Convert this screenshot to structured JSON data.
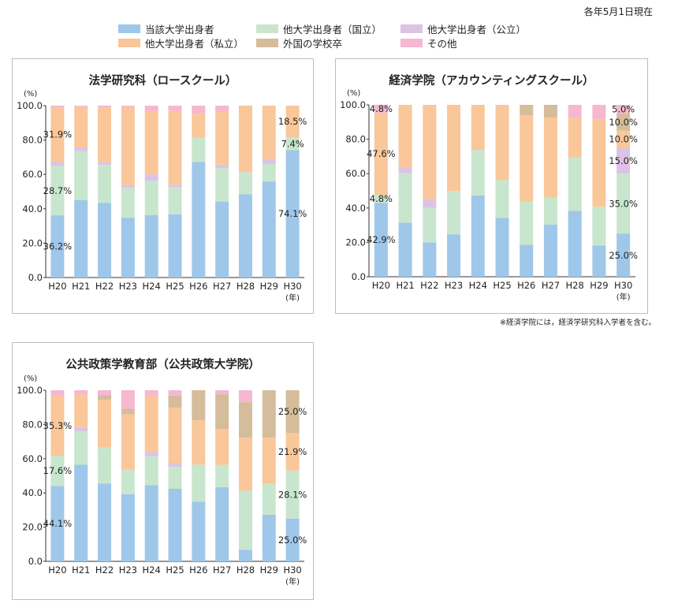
{
  "date_note": "各年5月1日現在",
  "legend": [
    {
      "label": "当該大学出身者",
      "color": "#9fc7e9"
    },
    {
      "label": "他大学出身者（国立）",
      "color": "#c8e6cd"
    },
    {
      "label": "他大学出身者（公立）",
      "color": "#dcc3e6"
    },
    {
      "label": "他大学出身者（私立）",
      "color": "#f9c79a"
    },
    {
      "label": "外国の学校卒",
      "color": "#d5bc9b"
    },
    {
      "label": "その他",
      "color": "#f6b7d0"
    }
  ],
  "footnote": "※経済学院には，経済学研究科入学者を含む。",
  "y_unit": "(%)",
  "x_unit": "(年)",
  "chart_data": [
    {
      "type": "bar",
      "stacked": true,
      "title": "法学研究科（ロースクール）",
      "categories": [
        "H20",
        "H21",
        "H22",
        "H23",
        "H24",
        "H25",
        "H26",
        "H27",
        "H28",
        "H29",
        "H30"
      ],
      "ylim": [
        0,
        100
      ],
      "yticks": [
        "0.0",
        "20.0",
        "40.0",
        "60.0",
        "80.0",
        "100.0"
      ],
      "series": [
        {
          "name": "当該大学出身者",
          "values": [
            36.2,
            45.1,
            43.5,
            34.8,
            36.4,
            36.8,
            67.3,
            44.2,
            48.4,
            55.9,
            74.1
          ]
        },
        {
          "name": "他大学出身者（国立）",
          "values": [
            28.7,
            28.5,
            22.2,
            17.4,
            20.0,
            15.8,
            14.0,
            19.5,
            12.9,
            10.2,
            7.4
          ]
        },
        {
          "name": "他大学出身者（公立）",
          "values": [
            2.3,
            2.1,
            1.4,
            1.5,
            3.6,
            1.4,
            0,
            2.0,
            0,
            2.9,
            0
          ]
        },
        {
          "name": "他大学出身者（私立）",
          "values": [
            31.9,
            23.5,
            31.9,
            45.2,
            37.0,
            43.2,
            14.0,
            30.6,
            38.7,
            31.0,
            18.5
          ]
        },
        {
          "name": "外国の学校卒",
          "values": [
            0,
            0,
            0,
            0,
            0,
            0,
            0,
            0,
            0,
            0,
            0
          ]
        },
        {
          "name": "その他",
          "values": [
            0.9,
            0.8,
            1.0,
            1.1,
            3.0,
            2.8,
            4.7,
            3.7,
            0,
            0,
            0
          ]
        }
      ],
      "data_labels": [
        {
          "category": "H20",
          "series": "他大学出身者（私立）",
          "text": "31.9%"
        },
        {
          "category": "H20",
          "series": "他大学出身者（国立）",
          "text": "28.7%"
        },
        {
          "category": "H20",
          "series": "当該大学出身者",
          "text": "36.2%"
        },
        {
          "category": "H30",
          "series": "他大学出身者（私立）",
          "text": "18.5%"
        },
        {
          "category": "H30",
          "series": "他大学出身者（国立）",
          "text": "7.4%"
        },
        {
          "category": "H30",
          "series": "当該大学出身者",
          "text": "74.1%"
        }
      ]
    },
    {
      "type": "bar",
      "stacked": true,
      "title": "経済学院（アカウンティングスクール）",
      "categories": [
        "H20",
        "H21",
        "H22",
        "H23",
        "H24",
        "H25",
        "H26",
        "H27",
        "H28",
        "H29",
        "H30"
      ],
      "ylim": [
        0,
        100
      ],
      "yticks": [
        "0.0",
        "20.0",
        "40.0",
        "60.0",
        "80.0",
        "100.0"
      ],
      "series": [
        {
          "name": "当該大学出身者",
          "values": [
            42.9,
            31.5,
            19.9,
            24.7,
            47.3,
            34.3,
            18.6,
            30.4,
            38.3,
            18.1,
            25.0
          ]
        },
        {
          "name": "他大学出身者（国立）",
          "values": [
            4.8,
            28.7,
            20.1,
            25.2,
            26.5,
            22.1,
            25.2,
            15.6,
            31.2,
            22.6,
            35.0
          ]
        },
        {
          "name": "他大学出身者（公立）",
          "values": [
            0,
            3.6,
            5.1,
            0,
            0,
            0,
            0,
            0,
            0,
            0,
            15.0
          ]
        },
        {
          "name": "他大学出身者（私立）",
          "values": [
            47.6,
            36.2,
            54.9,
            50.1,
            26.2,
            43.6,
            50.2,
            46.5,
            23.1,
            50.9,
            10.0
          ]
        },
        {
          "name": "外国の学校卒",
          "values": [
            0,
            0,
            0,
            0,
            0,
            0,
            6.0,
            7.5,
            0,
            0,
            10.0
          ]
        },
        {
          "name": "その他",
          "values": [
            4.8,
            0,
            0,
            0,
            0,
            0,
            0,
            0,
            7.4,
            8.4,
            5.0
          ]
        }
      ],
      "data_labels": [
        {
          "category": "H20",
          "series": "その他",
          "text": "4.8%"
        },
        {
          "category": "H20",
          "series": "他大学出身者（私立）",
          "text": "47.6%"
        },
        {
          "category": "H20",
          "series": "他大学出身者（国立）",
          "text": "4.8%"
        },
        {
          "category": "H20",
          "series": "当該大学出身者",
          "text": "42.9%"
        },
        {
          "category": "H30",
          "series": "その他",
          "text": "5.0%"
        },
        {
          "category": "H30",
          "series": "外国の学校卒",
          "text": "10.0%"
        },
        {
          "category": "H30",
          "series": "他大学出身者（私立）",
          "text": "10.0%"
        },
        {
          "category": "H30",
          "series": "他大学出身者（公立）",
          "text": "15.0%"
        },
        {
          "category": "H30",
          "series": "他大学出身者（国立）",
          "text": "35.0%"
        },
        {
          "category": "H30",
          "series": "当該大学出身者",
          "text": "25.0%"
        }
      ]
    },
    {
      "type": "bar",
      "stacked": true,
      "title": "公共政策学教育部（公共政策大学院）",
      "categories": [
        "H20",
        "H21",
        "H22",
        "H23",
        "H24",
        "H25",
        "H26",
        "H27",
        "H28",
        "H29",
        "H30"
      ],
      "ylim": [
        0,
        100
      ],
      "yticks": [
        "0.0",
        "20.0",
        "40.0",
        "60.0",
        "80.0",
        "100.0"
      ],
      "series": [
        {
          "name": "当該大学出身者",
          "values": [
            44.1,
            56.5,
            45.4,
            39.3,
            44.6,
            42.4,
            34.8,
            43.4,
            6.8,
            27.2,
            25.0
          ]
        },
        {
          "name": "他大学出身者（国立）",
          "values": [
            17.6,
            19.5,
            21.2,
            14.4,
            16.8,
            12.8,
            21.7,
            13.0,
            34.5,
            18.1,
            28.1
          ]
        },
        {
          "name": "他大学出身者（公立）",
          "values": [
            0,
            2.5,
            0,
            0,
            2.6,
            2.4,
            0,
            0,
            0,
            0,
            0
          ]
        },
        {
          "name": "他大学出身者（私立）",
          "values": [
            35.3,
            19.0,
            27.9,
            32.3,
            32.5,
            32.3,
            26.0,
            21.0,
            31.0,
            27.0,
            21.9
          ]
        },
        {
          "name": "外国の学校卒",
          "values": [
            0,
            0,
            2.5,
            3.3,
            0,
            7.0,
            17.5,
            20.2,
            20.7,
            27.7,
            25.0
          ]
        },
        {
          "name": "その他",
          "values": [
            3.0,
            2.5,
            3.0,
            10.7,
            3.5,
            3.1,
            0,
            2.4,
            7.0,
            0,
            0
          ]
        }
      ],
      "data_labels": [
        {
          "category": "H20",
          "series": "他大学出身者（私立）",
          "text": "35.3%"
        },
        {
          "category": "H20",
          "series": "他大学出身者（国立）",
          "text": "17.6%"
        },
        {
          "category": "H20",
          "series": "当該大学出身者",
          "text": "44.1%"
        },
        {
          "category": "H30",
          "series": "外国の学校卒",
          "text": "25.0%"
        },
        {
          "category": "H30",
          "series": "他大学出身者（私立）",
          "text": "21.9%"
        },
        {
          "category": "H30",
          "series": "他大学出身者（国立）",
          "text": "28.1%"
        },
        {
          "category": "H30",
          "series": "当該大学出身者",
          "text": "25.0%"
        }
      ]
    }
  ]
}
